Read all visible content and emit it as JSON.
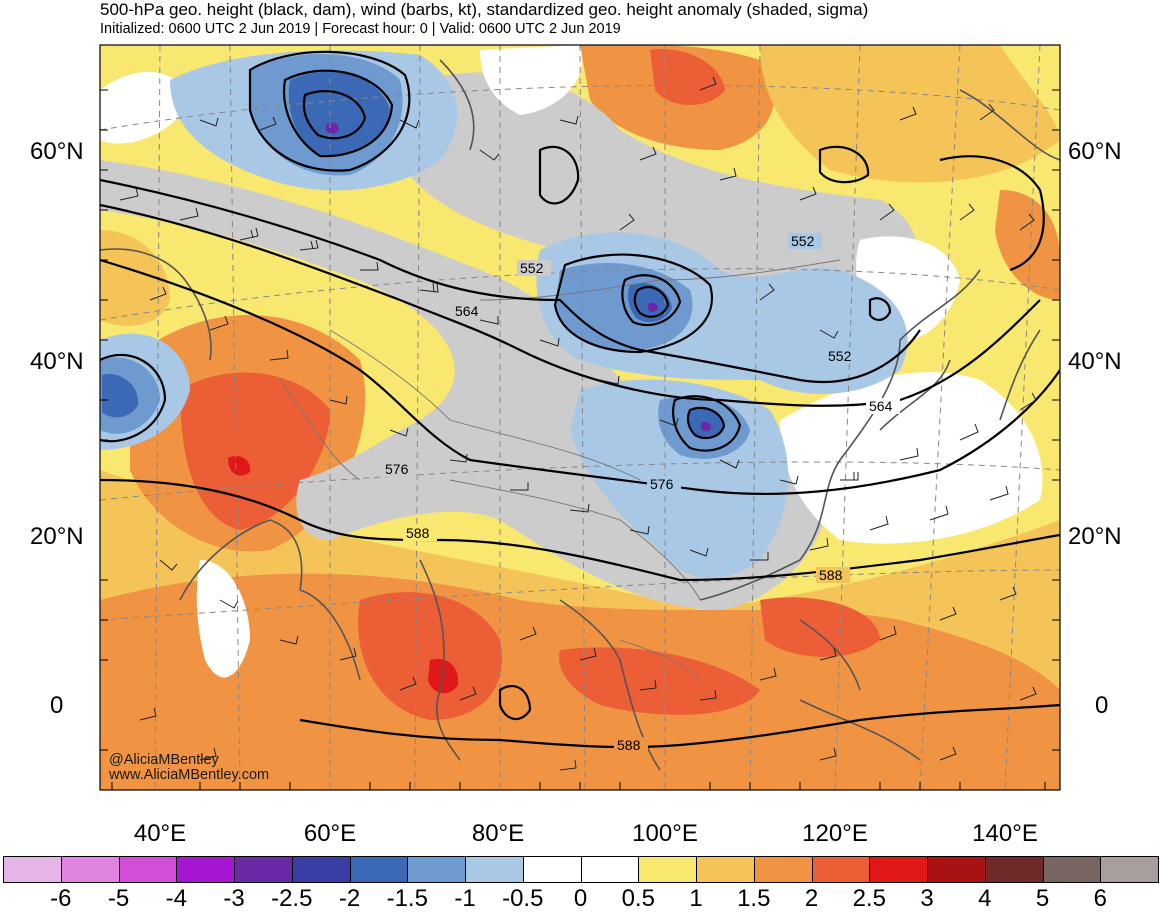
{
  "header": {
    "title": "500-hPa geo. height (black, dam), wind (barbs, kt), standardized geo. height anomaly (shaded, sigma)",
    "subtitle": "Initialized: 0600 UTC 2 Jun 2019 | Forecast hour: 0 | Valid: 0600 UTC 2 Jun 2019"
  },
  "credits": {
    "handle": "@AliciaMBentley",
    "website": "www.AliciaMBentley.com"
  },
  "lat_labels": [
    "60°N",
    "40°N",
    "20°N",
    "0"
  ],
  "lon_labels": [
    "40°E",
    "60°E",
    "80°E",
    "100°E",
    "120°E",
    "140°E"
  ],
  "contour_labels": [
    "552",
    "552",
    "564",
    "552",
    "564",
    "576",
    "576",
    "588",
    "588",
    "588"
  ],
  "colorbar": {
    "labels": [
      "-6",
      "-5",
      "-4",
      "-3",
      "-2.5",
      "-2",
      "-1.5",
      "-1",
      "-0.5",
      "0",
      "0.5",
      "1",
      "1.5",
      "2",
      "2.5",
      "3",
      "4",
      "5",
      "6"
    ],
    "colors": [
      "#e6b4e6",
      "#e084e0",
      "#d24ed8",
      "#a616d4",
      "#6a2aa8",
      "#3a3ea4",
      "#3c69b5",
      "#6e9ad0",
      "#a8c8e6",
      "#ffffff",
      "#ffffff",
      "#f8e870",
      "#f5c458",
      "#f09443",
      "#ec5e36",
      "#e01818",
      "#a81212",
      "#6e2a28",
      "#786460",
      "#a89e9e"
    ]
  },
  "legend_colors": {
    "strong_negative": "#3c69b5",
    "negative": "#a8c8e6",
    "neutral": "#cccccc",
    "positive": "#f8e870",
    "strong_positive": "#ec5e36"
  }
}
